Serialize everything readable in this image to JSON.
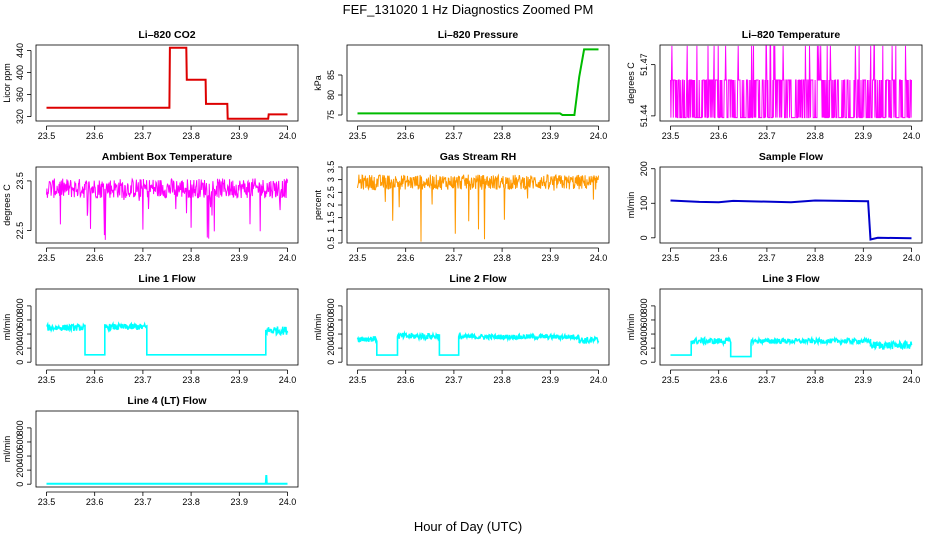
{
  "title": "FEF_131020  1 Hz Diagnostics Zoomed PM",
  "xlabel": "Hour of Day (UTC)",
  "chart_data": [
    {
      "type": "line",
      "title": "Li–820 CO2",
      "ylabel": "Licor ppm",
      "color": "#dd0000",
      "xlim": [
        23.5,
        24.0
      ],
      "ylim": [
        312,
        450
      ],
      "x_ticks": [
        "23.5",
        "23.6",
        "23.7",
        "23.8",
        "23.9",
        "24.0"
      ],
      "y_ticks": [
        320,
        360,
        400,
        440
      ],
      "series": [
        {
          "name": "CO2",
          "x": [
            23.5,
            23.755,
            23.756,
            23.79,
            23.791,
            23.83,
            23.831,
            23.875,
            23.876,
            23.96,
            23.961,
            24.0
          ],
          "y": [
            336,
            336,
            445,
            445,
            387,
            387,
            343,
            343,
            316,
            316,
            324,
            324
          ]
        }
      ]
    },
    {
      "type": "line",
      "title": "Li–820 Pressure",
      "ylabel": "kPa",
      "color": "#00bb00",
      "xlim": [
        23.5,
        24.0
      ],
      "ylim": [
        73.5,
        92.5
      ],
      "x_ticks": [
        "23.5",
        "23.6",
        "23.7",
        "23.8",
        "23.9",
        "24.0"
      ],
      "y_ticks": [
        75,
        80,
        85
      ],
      "series": [
        {
          "name": "Pressure",
          "x": [
            23.5,
            23.92,
            23.925,
            23.95,
            23.96,
            23.97,
            24.0
          ],
          "y": [
            75.4,
            75.4,
            75.0,
            75.0,
            84.5,
            91.4,
            91.4
          ]
        }
      ]
    },
    {
      "type": "line",
      "title": "Li–820 Temperature",
      "ylabel": "degrees C",
      "color": "#ff00ff",
      "xlim": [
        23.5,
        24.0
      ],
      "ylim": [
        51.437,
        51.4815
      ],
      "x_ticks": [
        "23.5",
        "23.6",
        "23.7",
        "23.8",
        "23.9",
        "24.0"
      ],
      "y_ticks": [
        51.44,
        51.47
      ],
      "y_tick_labels": [
        "51.44",
        "51.47"
      ],
      "band": {
        "pattern": "binary",
        "low": 51.439,
        "high": 51.461,
        "peak": 51.481
      }
    },
    {
      "type": "line",
      "title": "Ambient Box Temperature",
      "ylabel": "degrees C",
      "color": "#ff00ff",
      "xlim": [
        23.5,
        24.0
      ],
      "ylim": [
        22.25,
        23.78
      ],
      "x_ticks": [
        "23.5",
        "23.6",
        "23.7",
        "23.8",
        "23.9",
        "24.0"
      ],
      "y_ticks": [
        22.5,
        23.5
      ],
      "band": {
        "pattern": "noise",
        "center": 23.35,
        "amplitude": 0.2,
        "spike_min": 22.3
      }
    },
    {
      "type": "line",
      "title": "Gas Stream RH",
      "ylabel": "percent",
      "color": "#ff9900",
      "xlim": [
        23.5,
        24.0
      ],
      "ylim": [
        0.5,
        3.5
      ],
      "x_ticks": [
        "23.5",
        "23.6",
        "23.7",
        "23.8",
        "23.9",
        "24.0"
      ],
      "y_ticks": [
        0.5,
        1.0,
        1.5,
        2.0,
        2.5,
        3.0,
        3.5
      ],
      "band": {
        "pattern": "noise",
        "center": 2.9,
        "amplitude": 0.3,
        "spike_min": 0.5
      }
    },
    {
      "type": "line",
      "title": "Sample Flow",
      "ylabel": "ml/min",
      "color": "#0000cc",
      "xlim": [
        23.5,
        24.0
      ],
      "ylim": [
        -15,
        205
      ],
      "x_ticks": [
        "23.5",
        "23.6",
        "23.7",
        "23.8",
        "23.9",
        "24.0"
      ],
      "y_ticks": [
        0,
        100,
        200
      ],
      "series": [
        {
          "name": "Sample Flow",
          "x": [
            23.5,
            23.56,
            23.6,
            23.63,
            23.75,
            23.8,
            23.91,
            23.915,
            23.93,
            24.0
          ],
          "y": [
            108,
            104,
            103,
            107,
            103,
            108,
            106,
            -5,
            0,
            -1
          ]
        }
      ]
    },
    {
      "type": "line",
      "title": "Line 1 Flow",
      "ylabel": "ml/min",
      "color": "#00ffff",
      "xlim": [
        23.5,
        24.0
      ],
      "ylim": [
        -40,
        1040
      ],
      "x_ticks": [
        "23.5",
        "23.6",
        "23.7",
        "23.8",
        "23.9",
        "24.0"
      ],
      "y_ticks": [
        0,
        200,
        400,
        600,
        800
      ],
      "segments": [
        {
          "x0": 23.5,
          "x1": 23.58,
          "y": 490,
          "jitter": 45
        },
        {
          "x0": 23.58,
          "x1": 23.621,
          "y": 105,
          "jitter": 0
        },
        {
          "x0": 23.621,
          "x1": 23.708,
          "y": 500,
          "jitter": 45
        },
        {
          "x0": 23.708,
          "x1": 23.955,
          "y": 105,
          "jitter": 0
        },
        {
          "x0": 23.955,
          "x1": 24.0,
          "y": 450,
          "jitter": 60
        }
      ]
    },
    {
      "type": "line",
      "title": "Line 2 Flow",
      "ylabel": "ml/min",
      "color": "#00ffff",
      "xlim": [
        23.5,
        24.0
      ],
      "ylim": [
        -40,
        1040
      ],
      "x_ticks": [
        "23.5",
        "23.6",
        "23.7",
        "23.8",
        "23.9",
        "24.0"
      ],
      "y_ticks": [
        0,
        200,
        400,
        600,
        800
      ],
      "segments": [
        {
          "x0": 23.5,
          "x1": 23.54,
          "y": 330,
          "jitter": 40
        },
        {
          "x0": 23.54,
          "x1": 23.583,
          "y": 100,
          "jitter": 0
        },
        {
          "x0": 23.583,
          "x1": 23.67,
          "y": 370,
          "jitter": 45
        },
        {
          "x0": 23.67,
          "x1": 23.71,
          "y": 100,
          "jitter": 0
        },
        {
          "x0": 23.71,
          "x1": 23.96,
          "y": 360,
          "jitter": 35
        },
        {
          "x0": 23.96,
          "x1": 24.0,
          "y": 310,
          "jitter": 50
        }
      ]
    },
    {
      "type": "line",
      "title": "Line 3 Flow",
      "ylabel": "ml/min",
      "color": "#00ffff",
      "xlim": [
        23.5,
        24.0
      ],
      "ylim": [
        -40,
        1040
      ],
      "x_ticks": [
        "23.5",
        "23.6",
        "23.7",
        "23.8",
        "23.9",
        "24.0"
      ],
      "y_ticks": [
        0,
        200,
        400,
        600,
        800
      ],
      "segments": [
        {
          "x0": 23.5,
          "x1": 23.543,
          "y": 100,
          "jitter": 0
        },
        {
          "x0": 23.543,
          "x1": 23.625,
          "y": 300,
          "jitter": 45
        },
        {
          "x0": 23.625,
          "x1": 23.667,
          "y": 80,
          "jitter": 0
        },
        {
          "x0": 23.667,
          "x1": 23.915,
          "y": 300,
          "jitter": 35
        },
        {
          "x0": 23.915,
          "x1": 24.0,
          "y": 240,
          "jitter": 55
        }
      ]
    },
    {
      "type": "line",
      "title": "Line 4 (LT) Flow",
      "ylabel": "ml/min",
      "color": "#00ffff",
      "xlim": [
        23.5,
        24.0
      ],
      "ylim": [
        -40,
        1040
      ],
      "x_ticks": [
        "23.5",
        "23.6",
        "23.7",
        "23.8",
        "23.9",
        "24.0"
      ],
      "y_ticks": [
        0,
        200,
        400,
        600,
        800
      ],
      "series": [
        {
          "name": "Line 4",
          "x": [
            23.5,
            23.955,
            23.956,
            23.957,
            24.0
          ],
          "y": [
            5,
            5,
            130,
            5,
            5
          ]
        }
      ]
    }
  ]
}
